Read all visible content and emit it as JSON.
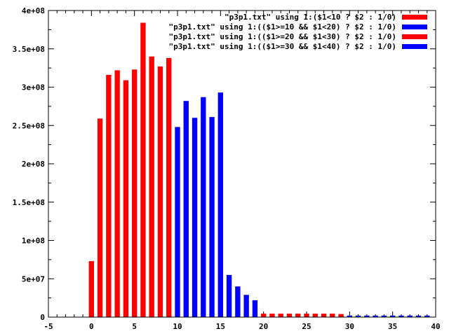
{
  "chart_data": {
    "type": "bar",
    "title": "",
    "xlabel": "",
    "ylabel": "",
    "xlim": [
      -5,
      40
    ],
    "ylim": [
      0,
      400000000
    ],
    "x_ticks": [
      -5,
      0,
      5,
      10,
      15,
      20,
      25,
      30,
      35,
      40
    ],
    "x_tick_labels": [
      "-5",
      "0",
      "5",
      "10",
      "15",
      "20",
      "25",
      "30",
      "35",
      "40"
    ],
    "y_ticks": [
      0,
      50000000,
      100000000,
      150000000,
      200000000,
      250000000,
      300000000,
      350000000,
      400000000
    ],
    "y_tick_labels": [
      "0",
      "5e+07",
      "1e+08",
      "1.5e+08",
      "2e+08",
      "2.5e+08",
      "3e+08",
      "3.5e+08",
      "4e+08"
    ],
    "grid": false,
    "legend_position": "top-right",
    "series": [
      {
        "name": "\"p3p1.txt\" using 1:($1<10 ? $2 : 1/0)",
        "color": "#ff0000",
        "x": [
          0,
          1,
          2,
          3,
          4,
          5,
          6,
          7,
          8,
          9
        ],
        "values": [
          73000000,
          259000000,
          316000000,
          322000000,
          309000000,
          323000000,
          384000000,
          340000000,
          327000000,
          338000000
        ]
      },
      {
        "name": "\"p3p1.txt\" using 1:(($1>=10 && $1<20) ? $2 : 1/0)",
        "color": "#0000ff",
        "x": [
          10,
          11,
          12,
          13,
          14,
          15,
          16,
          17,
          18,
          19
        ],
        "values": [
          248000000,
          282000000,
          260000000,
          287000000,
          261000000,
          293000000,
          55000000,
          40000000,
          29000000,
          22000000
        ]
      },
      {
        "name": "\"p3p1.txt\" using 1:(($1>=20 && $1<30) ? $2 : 1/0)",
        "color": "#ff0000",
        "x": [
          20,
          21,
          22,
          23,
          24,
          25,
          26,
          27,
          28,
          29
        ],
        "values": [
          4500000,
          4500000,
          4500000,
          4500000,
          4500000,
          4500000,
          4500000,
          4500000,
          4500000,
          4000000
        ]
      },
      {
        "name": "\"p3p1.txt\" using 1:(($1>=30 && $1<40) ? $2 : 1/0)",
        "color": "#0000ff",
        "x": [
          30,
          31,
          32,
          33,
          34,
          35,
          36,
          37,
          38,
          39
        ],
        "values": [
          2000000,
          2000000,
          2000000,
          2000000,
          2000000,
          2000000,
          2000000,
          2000000,
          2000000,
          2000000
        ]
      }
    ]
  }
}
